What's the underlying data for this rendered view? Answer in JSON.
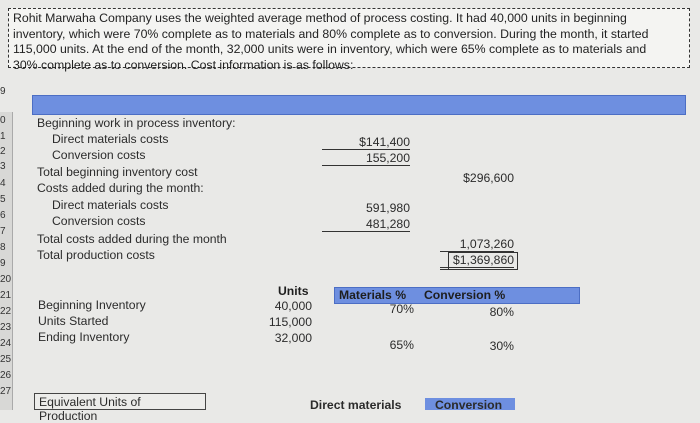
{
  "problem": {
    "lines": [
      "Rohit Marwaha Company uses the weighted average method of process costing. It had 40,000 units in beginning",
      "inventory, which were 70% complete as to materials and 80% complete as to conversion. During the month, it started",
      "115,000 units. At the end of the month, 32,000 units were in inventory, which were 65% complete as to materials and",
      "30% complete as to conversion. Cost information is as follows:"
    ]
  },
  "row_numbers": [
    "9",
    "0",
    "1",
    "2",
    "3",
    "4",
    "5",
    "6",
    "7",
    "8",
    "9",
    "20",
    "21",
    "22",
    "23",
    "24",
    "25",
    "26",
    "27"
  ],
  "costs": {
    "beginning_wip": "Beginning work in process inventory:",
    "dm": "Direct materials costs",
    "cc": "Conversion costs",
    "total_beginning": "Total beginning inventory cost",
    "added": "Costs added during the month:",
    "dm2": "Direct materials costs",
    "cc2": "Conversion costs",
    "total_added": "Total costs added during the month",
    "total_production": "Total production costs",
    "dm_value": "$141,400",
    "cc_value": "155,200",
    "total_beginning_value": "$296,600",
    "dm2_value": "591,980",
    "cc2_value": "481,280",
    "total_added_value": "1,073,260",
    "total_production_value": "$1,369,860"
  },
  "units_table": {
    "headers": {
      "units": "Units",
      "materials": "Materials %",
      "conversion": "Conversion %"
    },
    "rows": [
      {
        "label": "Beginning Inventory",
        "units": "40,000",
        "materials": "70%",
        "conversion": "80%"
      },
      {
        "label": "Units Started",
        "units": "115,000",
        "materials": "",
        "conversion": ""
      },
      {
        "label": "Ending Inventory",
        "units": "32,000",
        "materials": "65%",
        "conversion": "30%"
      }
    ]
  },
  "bottom": {
    "equivalent_units": "Equivalent Units of Production",
    "direct_materials": "Direct materials",
    "conversion": "Conversion"
  }
}
